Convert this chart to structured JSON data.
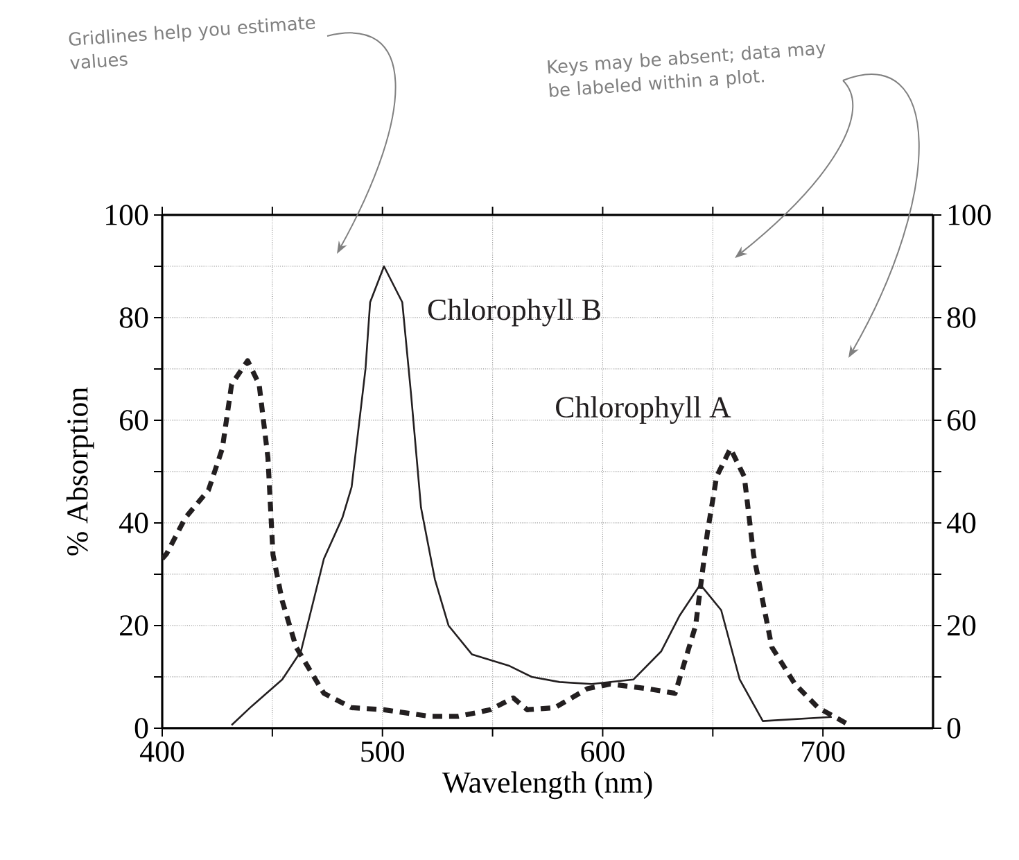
{
  "chart_data": {
    "type": "line",
    "xlabel": "Wavelength (nm)",
    "ylabel": "% Absorption",
    "annotations": [
      "Gridlines help you estimate values",
      "Keys may be absent; data may be labeled within a plot."
    ],
    "xlim": [
      400,
      750
    ],
    "xticks": [
      400,
      {
        "value": 450,
        "label": null
      },
      500,
      {
        "value": 550,
        "label": null
      },
      600,
      {
        "value": 650,
        "label": null
      },
      700
    ],
    "ylim": [
      0,
      100
    ],
    "yticks": [
      0,
      {
        "value": 10,
        "label": null
      },
      20,
      {
        "value": 30,
        "label": null
      },
      40,
      {
        "value": 50,
        "label": null
      },
      60,
      {
        "value": 70,
        "label": null
      },
      80,
      {
        "value": 90,
        "label": null
      },
      100
    ],
    "y2lim": [
      0,
      100
    ],
    "y2ticks": [
      0,
      {
        "value": 10,
        "label": null
      },
      20,
      {
        "value": 30,
        "label": null
      },
      40,
      {
        "value": 50,
        "label": null
      },
      60,
      {
        "value": 70,
        "label": null
      },
      80,
      {
        "value": 90,
        "label": null
      },
      100
    ],
    "grid": true,
    "legend": false,
    "marker": "none",
    "series": [
      {
        "name": "Chlorophyll B",
        "color": "#231f20",
        "line_style": "solid",
        "x": [
          431.5,
          439.9,
          454.5,
          463,
          473.4,
          481.8,
          486,
          492.3,
          494.4,
          500.7,
          509,
          513,
          517.5,
          523.8,
          530,
          540.6,
          557.3,
          567.8,
          580.4,
          595,
          614,
          626.6,
          635,
          644.3,
          653.8,
          662.2,
          672.7,
          704
        ],
        "values": [
          0.6,
          4,
          9.5,
          15,
          33,
          41,
          47,
          70,
          83,
          90,
          83,
          65,
          43,
          29,
          20,
          14.4,
          12.2,
          10,
          9,
          8.6,
          9.5,
          15,
          22,
          28,
          23,
          9.5,
          1.4,
          2.2
        ]
      },
      {
        "name": "Chlorophyll A",
        "color": "#231f20",
        "line_style": "dashed",
        "x": [
          400,
          402,
          410.5,
          421,
          427.3,
          431.5,
          438.8,
          444,
          448,
          450.3,
          454.5,
          460.8,
          473.4,
          486,
          500.7,
          521.7,
          534.3,
          549,
          559.4,
          565.7,
          578.3,
          593,
          603.5,
          620.3,
          632.9,
          642.2,
          647.5,
          651.7,
          658,
          664.3,
          668.5,
          676.8,
          687.3,
          697.8,
          710.4
        ],
        "values": [
          33,
          34,
          41,
          46.4,
          54.5,
          67,
          71.6,
          67,
          52.7,
          33.8,
          24.8,
          15.8,
          6.8,
          4,
          3.6,
          2.3,
          2.3,
          3.6,
          5.9,
          3.6,
          4,
          7.7,
          8.6,
          7.7,
          6.8,
          20,
          38,
          49,
          54.5,
          49,
          33.8,
          15.8,
          8.6,
          4,
          1
        ]
      }
    ]
  }
}
